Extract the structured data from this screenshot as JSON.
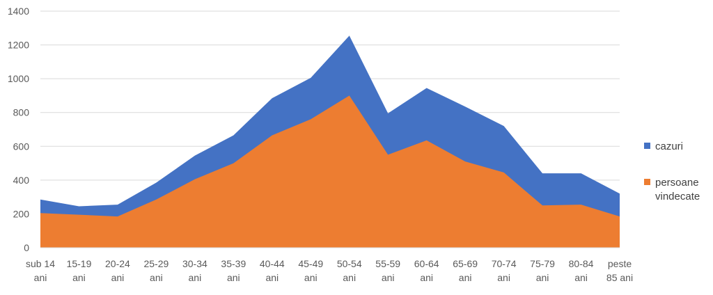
{
  "chart_data": {
    "type": "area",
    "title": "",
    "xlabel": "",
    "ylabel": "",
    "ylim": [
      0,
      1400
    ],
    "y_ticks": [
      0,
      200,
      400,
      600,
      800,
      1000,
      1200,
      1400
    ],
    "grid": true,
    "legend_position": "right",
    "categories": [
      [
        "sub 14",
        "ani"
      ],
      [
        "15-19",
        "ani"
      ],
      [
        "20-24",
        "ani"
      ],
      [
        "25-29",
        "ani"
      ],
      [
        "30-34",
        "ani"
      ],
      [
        "35-39",
        "ani"
      ],
      [
        "40-44",
        "ani"
      ],
      [
        "45-49",
        "ani"
      ],
      [
        "50-54",
        "ani"
      ],
      [
        "55-59",
        "ani"
      ],
      [
        "60-64",
        "ani"
      ],
      [
        "65-69",
        "ani"
      ],
      [
        "70-74",
        "ani"
      ],
      [
        "75-79",
        "ani"
      ],
      [
        "80-84",
        "ani"
      ],
      [
        "peste",
        "85 ani"
      ]
    ],
    "series": [
      {
        "name": "cazuri",
        "color": "#4472c4",
        "values": [
          285,
          245,
          255,
          385,
          545,
          665,
          885,
          1005,
          1255,
          795,
          945,
          835,
          720,
          440,
          440,
          320
        ]
      },
      {
        "name": "persoane vindecate",
        "legend_lines": [
          "persoane",
          "vindecate"
        ],
        "color": "#ed7d31",
        "values": [
          205,
          195,
          185,
          285,
          405,
          500,
          665,
          760,
          900,
          550,
          635,
          510,
          445,
          250,
          255,
          185
        ]
      }
    ]
  }
}
